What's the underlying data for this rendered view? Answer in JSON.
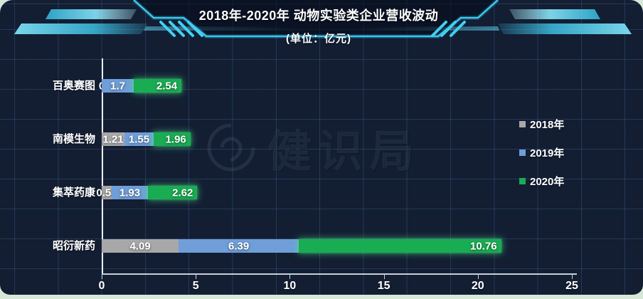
{
  "header": {
    "title": "2018年-2020年 动物实验类企业营收波动",
    "subtitle": "(单位：亿元)"
  },
  "watermark": {
    "text": "健识局"
  },
  "theme": {
    "background": "#131e33",
    "accent": "#3bc7ef",
    "axis_color": "#ffffff",
    "frame_color": "#d7e8d9"
  },
  "chart_data": {
    "type": "bar",
    "orientation": "horizontal",
    "stacked": true,
    "title": "2018年-2020年 动物实验类企业营收波动",
    "subtitle": "(单位：亿元)",
    "categories": [
      "百奥赛图",
      "南模生物",
      "集萃药康",
      "昭衍新药"
    ],
    "series": [
      {
        "name": "2018年",
        "color": "#a8a8a8",
        "values": [
          0,
          1.21,
          0.53,
          4.09
        ]
      },
      {
        "name": "2019年",
        "color": "#6f9ed8",
        "values": [
          1.7,
          1.55,
          1.93,
          6.39
        ]
      },
      {
        "name": "2020年",
        "color": "#1aac52",
        "values": [
          2.54,
          1.96,
          2.62,
          10.76
        ]
      }
    ],
    "xlabel": "",
    "ylabel": "",
    "xlim": [
      0,
      25
    ],
    "x_ticks": [
      0,
      5,
      10,
      15,
      20,
      25
    ],
    "grid": true,
    "legend_position": "right",
    "value_labels": true
  }
}
